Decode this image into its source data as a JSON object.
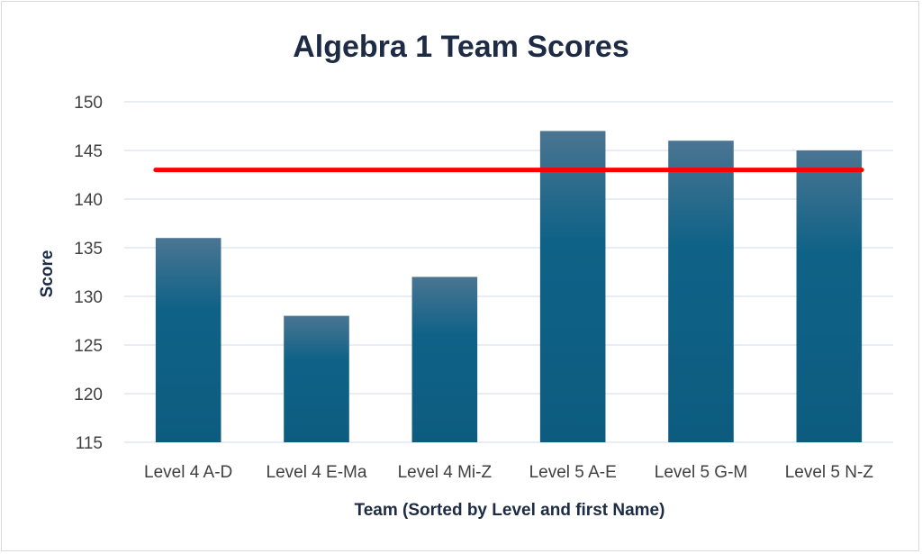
{
  "chart_data": {
    "type": "bar",
    "title": "Algebra 1 Team Scores",
    "xlabel": "Team (Sorted by Level and first Name)",
    "ylabel": "Score",
    "categories": [
      "Level 4 A-D",
      "Level 4 E-Ma",
      "Level 4 Mi-Z",
      "Level 5 A-E",
      "Level 5 G-M",
      "Level 5 N-Z"
    ],
    "values": [
      136,
      128,
      132,
      147,
      146,
      145
    ],
    "ylim": [
      115,
      150
    ],
    "yticks": [
      115,
      120,
      125,
      130,
      135,
      140,
      145,
      150
    ],
    "reference_line": {
      "value": 143,
      "color": "#ff0000"
    },
    "grid": true,
    "bar_color": "#0d5c80",
    "bar_color_top": "#4a7592"
  }
}
